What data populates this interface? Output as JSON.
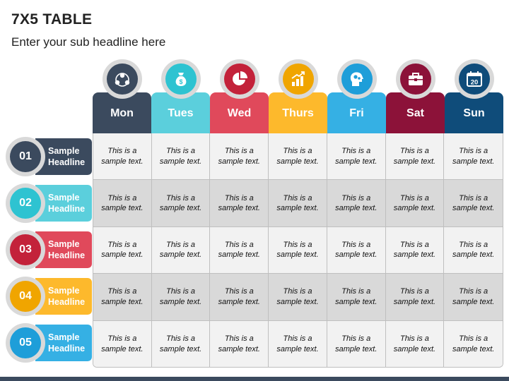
{
  "title": "7X5 TABLE",
  "subtitle": "Enter your sub headline here",
  "columns": [
    {
      "label": "Mon",
      "color": "#3b4a5e",
      "icon": "people-network-icon"
    },
    {
      "label": "Tues",
      "color": "#5bcfdc",
      "icon": "money-bag-icon"
    },
    {
      "label": "Wed",
      "color": "#e0495b",
      "icon": "pie-chart-icon"
    },
    {
      "label": "Thurs",
      "color": "#fdb92c",
      "icon": "growth-chart-icon"
    },
    {
      "label": "Fri",
      "color": "#35b0e4",
      "icon": "brain-gears-icon"
    },
    {
      "label": "Sat",
      "color": "#8c1239",
      "icon": "briefcase-icon"
    },
    {
      "label": "Sun",
      "color": "#0f4c7a",
      "icon": "calendar-icon",
      "icon_text": "20"
    }
  ],
  "icon_colors": [
    "#3b4a5e",
    "#2ec3d1",
    "#c3223a",
    "#f0a500",
    "#1e9ed9",
    "#8c1239",
    "#0f4c7a"
  ],
  "rows": [
    {
      "number": "01",
      "label": "Sample Headline",
      "tab_color": "#3b4a5e",
      "circle_color": "#3b4a5e"
    },
    {
      "number": "02",
      "label": "Sample Headline",
      "tab_color": "#5bcfdc",
      "circle_color": "#2ec3d1"
    },
    {
      "number": "03",
      "label": "Sample Headline",
      "tab_color": "#e0495b",
      "circle_color": "#c3223a"
    },
    {
      "number": "04",
      "label": "Sample Headline",
      "tab_color": "#fdb92c",
      "circle_color": "#f0a500"
    },
    {
      "number": "05",
      "label": "Sample Headline",
      "tab_color": "#35b0e4",
      "circle_color": "#1e9ed9"
    }
  ],
  "cells": [
    [
      "This is a sample text.",
      "This is a sample text.",
      "This is a sample text.",
      "This is a sample text.",
      "This is a sample text.",
      "This is a sample text.",
      "This is a sample text."
    ],
    [
      "This is a sample text.",
      "This is a sample text.",
      "This is a sample text.",
      "This is a sample text.",
      "This is a sample text.",
      "This is a sample text.",
      "This is a sample text."
    ],
    [
      "This is a sample text.",
      "This is a sample text.",
      "This is a sample text.",
      "This is a sample text.",
      "This is a sample text.",
      "This is a sample text.",
      "This is a sample text."
    ],
    [
      "This is a sample text.",
      "This is a sample text.",
      "This is a sample text.",
      "This is a sample text.",
      "This is a sample text.",
      "This is a sample text.",
      "This is a sample text."
    ],
    [
      "This is a sample text.",
      "This is a sample text.",
      "This is a sample text.",
      "This is a sample text.",
      "This is a sample text.",
      "This is a sample text.",
      "This is a sample text."
    ]
  ]
}
